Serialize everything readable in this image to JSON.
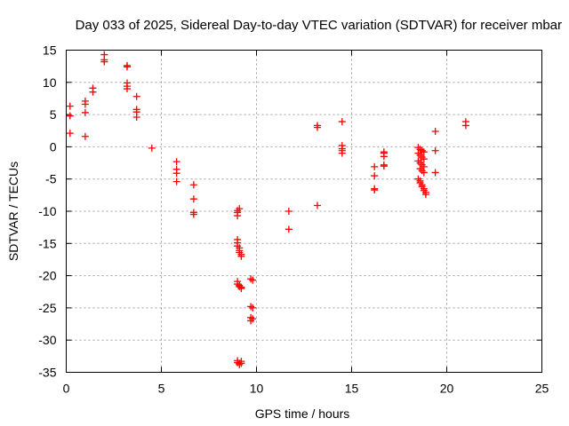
{
  "chart_data": {
    "type": "scatter",
    "title": "Day 033 of 2025, Sidereal Day-to-day VTEC variation (SDTVAR) for receiver mbar",
    "xlabel": "GPS time / hours",
    "ylabel": "SDTVAR / TECUs",
    "xlim": [
      0,
      25
    ],
    "ylim": [
      -35,
      15
    ],
    "xticks": [
      0,
      5,
      10,
      15,
      20,
      25
    ],
    "yticks": [
      15,
      10,
      5,
      0,
      -5,
      -10,
      -15,
      -20,
      -25,
      -30,
      -35
    ],
    "grid": true,
    "marker": "+",
    "color": "#ff0000",
    "series": [
      {
        "name": "SDTVAR",
        "points": [
          [
            0.2,
            6.3
          ],
          [
            0.2,
            4.8
          ],
          [
            0.2,
            2.1
          ],
          [
            1.0,
            7.1
          ],
          [
            1.0,
            6.6
          ],
          [
            1.0,
            5.3
          ],
          [
            1.0,
            1.6
          ],
          [
            1.4,
            9.1
          ],
          [
            1.4,
            8.5
          ],
          [
            2.0,
            14.3
          ],
          [
            2.0,
            13.5
          ],
          [
            2.0,
            13.2
          ],
          [
            3.2,
            12.6
          ],
          [
            3.2,
            12.4
          ],
          [
            3.2,
            9.9
          ],
          [
            3.2,
            9.4
          ],
          [
            3.2,
            9.0
          ],
          [
            3.7,
            7.8
          ],
          [
            3.7,
            5.8
          ],
          [
            3.7,
            5.4
          ],
          [
            3.7,
            4.6
          ],
          [
            4.5,
            -0.2
          ],
          [
            5.8,
            -2.3
          ],
          [
            5.8,
            -3.5
          ],
          [
            5.8,
            -4.1
          ],
          [
            5.8,
            -5.4
          ],
          [
            6.7,
            -5.9
          ],
          [
            6.7,
            -8.1
          ],
          [
            6.7,
            -10.2
          ],
          [
            6.7,
            -10.5
          ],
          [
            9.0,
            -10.7
          ],
          [
            9.0,
            -10.2
          ],
          [
            9.0,
            -9.9
          ],
          [
            9.1,
            -9.6
          ],
          [
            9.0,
            -14.4
          ],
          [
            9.0,
            -14.9
          ],
          [
            9.0,
            -15.4
          ],
          [
            9.1,
            -15.7
          ],
          [
            9.1,
            -16.1
          ],
          [
            9.1,
            -16.4
          ],
          [
            9.2,
            -16.7
          ],
          [
            9.2,
            -17.0
          ],
          [
            9.0,
            -20.9
          ],
          [
            9.0,
            -21.3
          ],
          [
            9.1,
            -21.5
          ],
          [
            9.1,
            -21.7
          ],
          [
            9.2,
            -21.8
          ],
          [
            9.2,
            -22.0
          ],
          [
            9.0,
            -33.2
          ],
          [
            9.0,
            -33.5
          ],
          [
            9.1,
            -33.6
          ],
          [
            9.1,
            -33.8
          ],
          [
            9.2,
            -33.6
          ],
          [
            9.2,
            -33.3
          ],
          [
            9.7,
            -20.5
          ],
          [
            9.8,
            -20.7
          ],
          [
            9.7,
            -24.8
          ],
          [
            9.8,
            -25.0
          ],
          [
            9.7,
            -26.5
          ],
          [
            9.8,
            -26.7
          ],
          [
            9.7,
            -27.0
          ],
          [
            11.7,
            -10.0
          ],
          [
            11.7,
            -12.8
          ],
          [
            13.2,
            3.3
          ],
          [
            13.2,
            3.0
          ],
          [
            13.2,
            -9.1
          ],
          [
            14.5,
            3.9
          ],
          [
            14.5,
            0.2
          ],
          [
            14.5,
            -0.3
          ],
          [
            14.5,
            -0.6
          ],
          [
            14.5,
            -1.0
          ],
          [
            16.2,
            -3.1
          ],
          [
            16.2,
            -4.5
          ],
          [
            16.2,
            -6.5
          ],
          [
            16.2,
            -6.7
          ],
          [
            16.7,
            -0.8
          ],
          [
            16.7,
            -1.0
          ],
          [
            16.7,
            -1.5
          ],
          [
            16.7,
            -2.8
          ],
          [
            16.7,
            -3.0
          ],
          [
            18.5,
            -0.1
          ],
          [
            18.6,
            -0.4
          ],
          [
            18.7,
            -0.6
          ],
          [
            18.8,
            -0.8
          ],
          [
            18.5,
            -1.0
          ],
          [
            18.6,
            -1.3
          ],
          [
            18.7,
            -1.6
          ],
          [
            18.8,
            -1.9
          ],
          [
            18.5,
            -2.2
          ],
          [
            18.6,
            -2.5
          ],
          [
            18.7,
            -2.8
          ],
          [
            18.8,
            -3.1
          ],
          [
            18.6,
            -3.4
          ],
          [
            18.7,
            -3.7
          ],
          [
            18.8,
            -4.0
          ],
          [
            18.5,
            -5.0
          ],
          [
            18.6,
            -5.3
          ],
          [
            18.6,
            -5.6
          ],
          [
            18.7,
            -5.9
          ],
          [
            18.7,
            -6.2
          ],
          [
            18.8,
            -6.5
          ],
          [
            18.8,
            -6.8
          ],
          [
            18.9,
            -7.1
          ],
          [
            18.9,
            -7.4
          ],
          [
            19.4,
            2.4
          ],
          [
            19.4,
            -0.6
          ],
          [
            19.4,
            -4.0
          ],
          [
            21.0,
            3.9
          ],
          [
            21.0,
            3.3
          ]
        ]
      }
    ]
  }
}
